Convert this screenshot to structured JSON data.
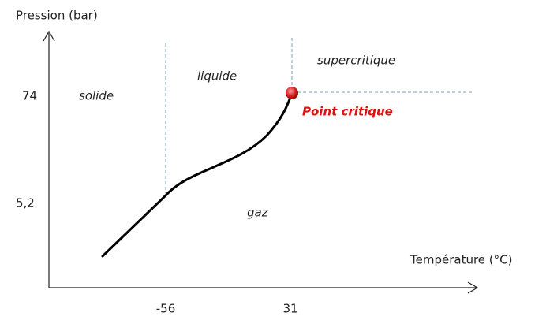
{
  "axes": {
    "y_label": "Pression (bar)",
    "x_label": "Température (°C)",
    "y_ticks": [
      "74",
      "5,2"
    ],
    "x_ticks": [
      "-56",
      "31"
    ]
  },
  "regions": [
    "solide",
    "liquide",
    "supercritique",
    "gaz"
  ],
  "annotation": "Point critique"
}
